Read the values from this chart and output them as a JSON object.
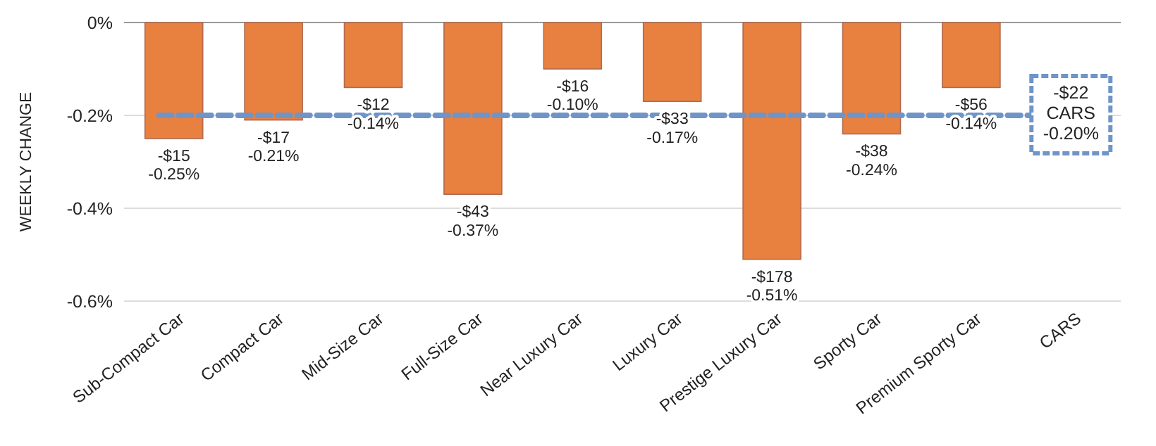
{
  "chart_data": {
    "type": "bar",
    "ylabel": "WEEKLY CHANGE",
    "categories": [
      "Sub-Compact Car",
      "Compact Car",
      "Mid-Size Car",
      "Full-Size Car",
      "Near Luxury Car",
      "Luxury Car",
      "Prestige Luxury Car",
      "Sporty Car",
      "Premium Sporty Car",
      "CARS"
    ],
    "values": [
      -0.25,
      -0.21,
      -0.14,
      -0.37,
      -0.1,
      -0.17,
      -0.51,
      -0.24,
      -0.14,
      null
    ],
    "value_labels": [
      "-$15\n-0.25%",
      "-$17\n-0.21%",
      "-$12\n-0.14%",
      "-$43\n-0.37%",
      "-$16\n-0.10%",
      "-$33\n-0.17%",
      "-$178\n-0.51%",
      "-$38\n-0.24%",
      "-$56\n-0.14%",
      null
    ],
    "color": "#e8803f",
    "ylim": [
      -0.6,
      0
    ],
    "yticks": [
      {
        "value": 0,
        "label": "0%"
      },
      {
        "value": -0.2,
        "label": "-0.2%"
      },
      {
        "value": -0.4,
        "label": "-0.4%"
      },
      {
        "value": -0.6,
        "label": "-0.6%"
      }
    ],
    "grid": "y",
    "ref_lines": [
      {
        "axis": "y",
        "value": -0.2,
        "label": "-$22\nCARS\n-0.20%",
        "color": "#6f95c8",
        "line_style": "dashed"
      }
    ]
  }
}
